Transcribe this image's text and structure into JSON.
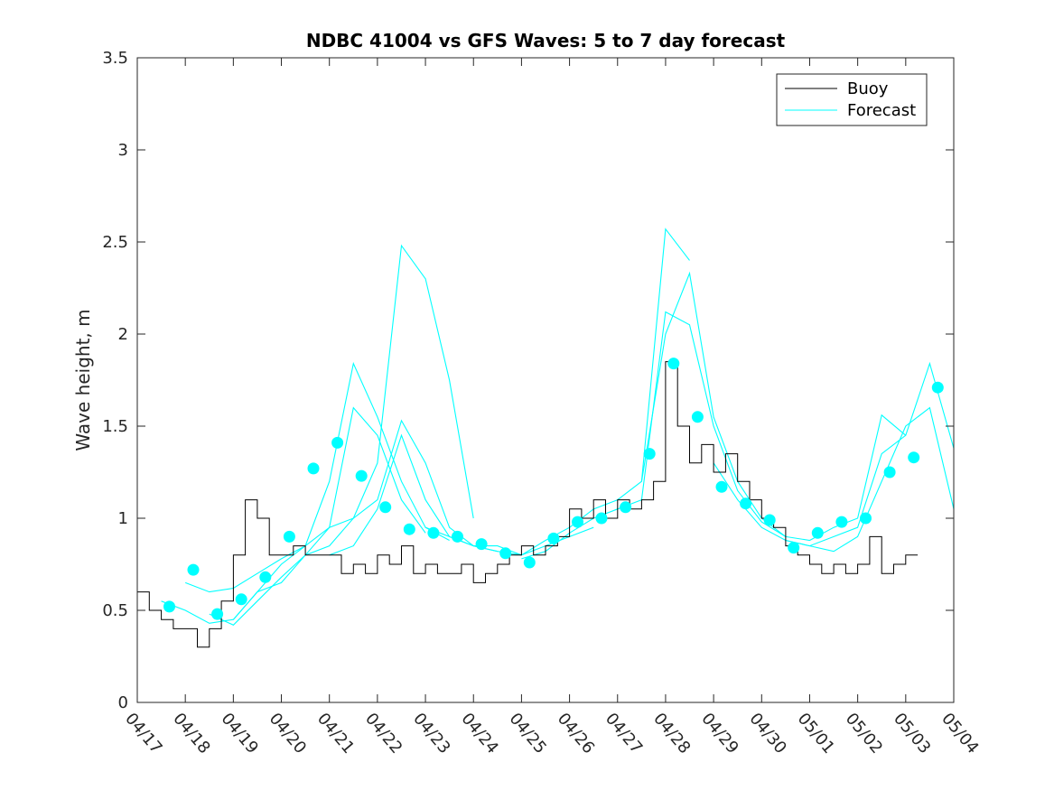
{
  "chart_data": {
    "type": "line",
    "title": "NDBC 41004 vs GFS Waves: 5 to 7 day forecast",
    "xlabel": "",
    "ylabel": "Wave height, m",
    "xlim": [
      "04/17",
      "05/04"
    ],
    "ylim": [
      0,
      3.5
    ],
    "x_ticks": [
      "04/17",
      "04/18",
      "04/19",
      "04/20",
      "04/21",
      "04/22",
      "04/23",
      "04/24",
      "04/25",
      "04/26",
      "04/27",
      "04/28",
      "04/29",
      "04/30",
      "05/01",
      "05/02",
      "05/03",
      "05/04"
    ],
    "y_ticks": [
      "0",
      "0.5",
      "1",
      "1.5",
      "2",
      "2.5",
      "3",
      "3.5"
    ],
    "grid": false,
    "legend_position": "top-right",
    "colors": {
      "buoy": "#000000",
      "forecast": "#00ffff",
      "axes": "#262626"
    },
    "series": [
      {
        "name": "Buoy",
        "x": [
          "04/17 00:00",
          "04/17 06:00",
          "04/17 12:00",
          "04/17 18:00",
          "04/18 00:00",
          "04/18 06:00",
          "04/18 12:00",
          "04/18 18:00",
          "04/19 00:00",
          "04/19 06:00",
          "04/19 12:00",
          "04/19 18:00",
          "04/20 00:00",
          "04/20 06:00",
          "04/20 12:00",
          "04/20 18:00",
          "04/21 00:00",
          "04/21 06:00",
          "04/21 12:00",
          "04/21 18:00",
          "04/22 00:00",
          "04/22 06:00",
          "04/22 12:00",
          "04/22 18:00",
          "04/23 00:00",
          "04/23 06:00",
          "04/23 12:00",
          "04/23 18:00",
          "04/24 00:00",
          "04/24 06:00",
          "04/24 12:00",
          "04/24 18:00",
          "04/25 00:00",
          "04/25 06:00",
          "04/25 12:00",
          "04/25 18:00",
          "04/26 00:00",
          "04/26 06:00",
          "04/26 12:00",
          "04/26 18:00",
          "04/27 00:00",
          "04/27 06:00",
          "04/27 12:00",
          "04/27 18:00",
          "04/28 00:00",
          "04/28 06:00",
          "04/28 12:00",
          "04/28 18:00",
          "04/29 00:00",
          "04/29 06:00",
          "04/29 12:00",
          "04/29 18:00",
          "04/30 00:00",
          "04/30 06:00",
          "04/30 12:00",
          "04/30 18:00",
          "05/01 00:00",
          "05/01 06:00",
          "05/01 12:00",
          "05/01 18:00",
          "05/02 00:00",
          "05/02 06:00",
          "05/02 12:00",
          "05/02 18:00",
          "05/03 00:00",
          "05/03 06:00"
        ],
        "values": [
          0.6,
          0.5,
          0.45,
          0.4,
          0.4,
          0.3,
          0.4,
          0.55,
          0.8,
          1.1,
          1.0,
          0.8,
          0.8,
          0.85,
          0.8,
          0.8,
          0.8,
          0.7,
          0.75,
          0.7,
          0.8,
          0.75,
          0.85,
          0.7,
          0.75,
          0.7,
          0.7,
          0.75,
          0.65,
          0.7,
          0.75,
          0.8,
          0.85,
          0.8,
          0.85,
          0.9,
          1.05,
          1.0,
          1.1,
          1.0,
          1.1,
          1.05,
          1.1,
          1.2,
          1.85,
          1.5,
          1.3,
          1.4,
          1.25,
          1.35,
          1.2,
          1.1,
          1.0,
          0.95,
          0.85,
          0.8,
          0.75,
          0.7,
          0.75,
          0.7,
          0.75,
          0.9,
          0.7,
          0.75,
          0.8,
          0.8
        ]
      },
      {
        "name": "Forecast",
        "runs": [
          {
            "x": [
              "04/17 12:00",
              "04/18 00:00",
              "04/18 12:00",
              "04/19 00:00",
              "04/19 12:00",
              "04/20 00:00",
              "04/20 12:00",
              "04/21 00:00",
              "04/21 12:00",
              "04/22 00:00",
              "04/22 12:00",
              "04/23 00:00"
            ],
            "values": [
              0.55,
              0.5,
              0.43,
              0.45,
              0.6,
              0.65,
              0.8,
              0.95,
              1.6,
              1.45,
              1.1,
              0.92
            ]
          },
          {
            "x": [
              "04/18 00:00",
              "04/18 12:00",
              "04/19 00:00",
              "04/19 12:00",
              "04/20 00:00",
              "04/20 12:00",
              "04/21 00:00",
              "04/21 12:00",
              "04/22 00:00",
              "04/22 12:00",
              "04/23 00:00",
              "04/23 12:00"
            ],
            "values": [
              0.65,
              0.6,
              0.62,
              0.7,
              0.78,
              0.85,
              1.2,
              1.84,
              1.55,
              1.2,
              0.95,
              0.88
            ]
          },
          {
            "x": [
              "04/18 12:00",
              "04/19 00:00",
              "04/19 12:00",
              "04/20 00:00",
              "04/20 12:00",
              "04/21 00:00",
              "04/21 12:00",
              "04/22 00:00",
              "04/22 12:00",
              "04/23 00:00",
              "04/23 12:00",
              "04/24 00:00"
            ],
            "values": [
              0.48,
              0.42,
              0.55,
              0.68,
              0.8,
              0.85,
              1.0,
              1.3,
              2.48,
              2.3,
              1.75,
              1.0
            ]
          },
          {
            "x": [
              "04/19 00:00",
              "04/19 12:00",
              "04/20 00:00",
              "04/20 12:00",
              "04/21 00:00",
              "04/21 12:00",
              "04/22 00:00",
              "04/22 12:00",
              "04/23 00:00",
              "04/23 12:00",
              "04/24 00:00",
              "04/24 12:00"
            ],
            "values": [
              0.45,
              0.6,
              0.75,
              0.85,
              0.95,
              1.0,
              1.1,
              1.53,
              1.3,
              0.95,
              0.85,
              0.82
            ]
          },
          {
            "x": [
              "04/21 00:00",
              "04/21 12:00",
              "04/22 00:00",
              "04/22 12:00",
              "04/23 00:00",
              "04/23 12:00",
              "04/24 00:00",
              "04/24 12:00",
              "04/25 00:00",
              "04/25 12:00",
              "04/26 00:00",
              "04/26 12:00"
            ],
            "values": [
              0.8,
              0.85,
              1.05,
              1.45,
              1.1,
              0.9,
              0.85,
              0.82,
              0.8,
              0.85,
              0.9,
              0.95
            ]
          },
          {
            "x": [
              "04/23 00:00",
              "04/23 12:00",
              "04/24 00:00",
              "04/24 12:00",
              "04/25 00:00",
              "04/25 12:00",
              "04/26 00:00",
              "04/26 12:00",
              "04/27 00:00",
              "04/27 12:00",
              "04/28 00:00",
              "04/28 12:00"
            ],
            "values": [
              0.95,
              0.9,
              0.85,
              0.85,
              0.8,
              0.88,
              0.95,
              1.05,
              1.1,
              1.2,
              2.57,
              2.4
            ]
          },
          {
            "x": [
              "04/25 00:00",
              "04/25 12:00",
              "04/26 00:00",
              "04/26 12:00",
              "04/27 00:00",
              "04/27 12:00",
              "04/28 00:00",
              "04/28 12:00",
              "04/29 00:00",
              "04/29 12:00",
              "04/30 00:00",
              "04/30 12:00"
            ],
            "values": [
              0.78,
              0.82,
              0.92,
              1.0,
              1.05,
              1.1,
              2.12,
              2.05,
              1.5,
              1.15,
              0.98,
              0.9
            ]
          },
          {
            "x": [
              "04/27 12:00",
              "04/28 00:00",
              "04/28 12:00",
              "04/29 00:00",
              "04/29 12:00",
              "04/30 00:00",
              "04/30 12:00",
              "05/01 00:00",
              "05/01 12:00",
              "05/02 00:00",
              "05/02 12:00",
              "05/03 00:00"
            ],
            "values": [
              1.2,
              2.0,
              2.33,
              1.55,
              1.2,
              1.0,
              0.9,
              0.88,
              0.95,
              1.0,
              1.56,
              1.45
            ]
          },
          {
            "x": [
              "04/29 00:00",
              "04/29 12:00",
              "04/30 00:00",
              "04/30 12:00",
              "05/01 00:00",
              "05/01 12:00",
              "05/02 00:00",
              "05/02 12:00",
              "05/03 00:00",
              "05/03 12:00",
              "05/04 00:00"
            ],
            "values": [
              1.3,
              1.1,
              0.95,
              0.88,
              0.85,
              0.9,
              0.95,
              1.35,
              1.45,
              1.84,
              1.38
            ]
          },
          {
            "x": [
              "04/30 12:00",
              "05/01 00:00",
              "05/01 12:00",
              "05/02 00:00",
              "05/02 12:00",
              "05/03 00:00",
              "05/03 12:00",
              "05/04 00:00"
            ],
            "values": [
              0.88,
              0.85,
              0.82,
              0.9,
              1.2,
              1.5,
              1.6,
              1.05
            ]
          }
        ],
        "markers": {
          "x": [
            "04/17 16:00",
            "04/18 04:00",
            "04/18 16:00",
            "04/19 04:00",
            "04/19 16:00",
            "04/20 04:00",
            "04/20 16:00",
            "04/21 04:00",
            "04/21 16:00",
            "04/22 04:00",
            "04/22 16:00",
            "04/23 04:00",
            "04/23 16:00",
            "04/24 04:00",
            "04/24 16:00",
            "04/25 04:00",
            "04/25 16:00",
            "04/26 04:00",
            "04/26 16:00",
            "04/27 04:00",
            "04/27 16:00",
            "04/28 04:00",
            "04/28 16:00",
            "04/29 04:00",
            "04/29 16:00",
            "04/30 04:00",
            "04/30 16:00",
            "05/01 04:00",
            "05/01 16:00",
            "05/02 04:00",
            "05/02 16:00",
            "05/03 04:00",
            "05/03 16:00"
          ],
          "values": [
            0.52,
            0.72,
            0.48,
            0.56,
            0.68,
            0.9,
            1.27,
            1.41,
            1.23,
            1.06,
            0.94,
            0.92,
            0.9,
            0.86,
            0.81,
            0.76,
            0.89,
            0.98,
            1.0,
            1.06,
            1.35,
            1.84,
            1.55,
            1.17,
            1.08,
            0.99,
            0.84,
            0.92,
            0.98,
            1.0,
            1.25,
            1.33,
            1.71
          ]
        }
      }
    ]
  }
}
